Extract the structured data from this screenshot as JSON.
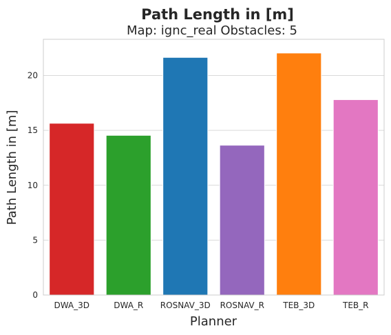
{
  "chart_data": {
    "type": "bar",
    "title": "Path Length in [m]",
    "subtitle": "Map: ignc_real Obstacles: 5",
    "xlabel": "Planner",
    "ylabel": "Path Length in [m]",
    "categories": [
      "DWA_3D",
      "DWA_R",
      "ROSNAV_3D",
      "ROSNAV_R",
      "TEB_3D",
      "TEB_R"
    ],
    "values": [
      15.65,
      14.55,
      21.65,
      13.65,
      22.05,
      17.8
    ],
    "colors": [
      "#d62728",
      "#2ca02c",
      "#1f77b4",
      "#9467bd",
      "#ff7f0e",
      "#e377c2"
    ],
    "ylim": [
      0,
      23.3
    ],
    "yticks": [
      "0",
      "5",
      "10",
      "15",
      "20"
    ],
    "grid": "horizontal",
    "legend": "none"
  }
}
